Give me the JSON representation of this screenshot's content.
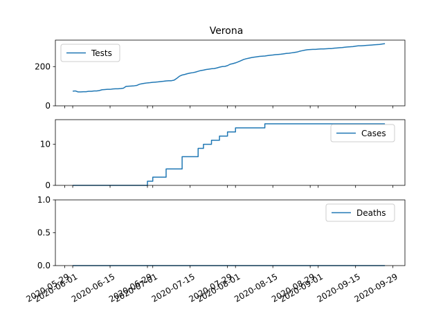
{
  "figure": {
    "title": "Verona",
    "line_color": "#1f77b4"
  },
  "chart_data": [
    {
      "type": "line",
      "series": [
        {
          "name": "Tests",
          "x": [
            "2020-06-01",
            "2020-06-02",
            "2020-06-03",
            "2020-06-04",
            "2020-06-05",
            "2020-06-06",
            "2020-06-07",
            "2020-06-08",
            "2020-06-09",
            "2020-06-10",
            "2020-06-11",
            "2020-06-12",
            "2020-06-13",
            "2020-06-14",
            "2020-06-15",
            "2020-06-16",
            "2020-06-17",
            "2020-06-18",
            "2020-06-19",
            "2020-06-20",
            "2020-06-21",
            "2020-06-22",
            "2020-06-23",
            "2020-06-24",
            "2020-06-25",
            "2020-06-26",
            "2020-06-27",
            "2020-06-28",
            "2020-06-29",
            "2020-06-30",
            "2020-07-01",
            "2020-07-02",
            "2020-07-03",
            "2020-07-04",
            "2020-07-05",
            "2020-07-06",
            "2020-07-07",
            "2020-07-08",
            "2020-07-09",
            "2020-07-10",
            "2020-07-11",
            "2020-07-12",
            "2020-07-13",
            "2020-07-14",
            "2020-07-15",
            "2020-07-16",
            "2020-07-17",
            "2020-07-18",
            "2020-07-19",
            "2020-07-20",
            "2020-07-21",
            "2020-07-22",
            "2020-07-23",
            "2020-07-24",
            "2020-07-25",
            "2020-07-26",
            "2020-07-27",
            "2020-07-28",
            "2020-07-29",
            "2020-07-30",
            "2020-07-31",
            "2020-08-01",
            "2020-08-02",
            "2020-08-03",
            "2020-08-04",
            "2020-08-05",
            "2020-08-06",
            "2020-08-07",
            "2020-08-08",
            "2020-08-09",
            "2020-08-10",
            "2020-08-11",
            "2020-08-12",
            "2020-08-13",
            "2020-08-14",
            "2020-08-15",
            "2020-08-16",
            "2020-08-17",
            "2020-08-18",
            "2020-08-19",
            "2020-08-20",
            "2020-08-21",
            "2020-08-22",
            "2020-08-23",
            "2020-08-24",
            "2020-08-25",
            "2020-08-26",
            "2020-08-27",
            "2020-08-28",
            "2020-08-29",
            "2020-08-30",
            "2020-08-31",
            "2020-09-01",
            "2020-09-02",
            "2020-09-03",
            "2020-09-04",
            "2020-09-05",
            "2020-09-06",
            "2020-09-07",
            "2020-09-08",
            "2020-09-09",
            "2020-09-10",
            "2020-09-11",
            "2020-09-12",
            "2020-09-13",
            "2020-09-14",
            "2020-09-15",
            "2020-09-16",
            "2020-09-17",
            "2020-09-18",
            "2020-09-19",
            "2020-09-20",
            "2020-09-21",
            "2020-09-22",
            "2020-09-23",
            "2020-09-24",
            "2020-09-25",
            "2020-09-26"
          ],
          "values": [
            75,
            76,
            71,
            71,
            72,
            72,
            74,
            74,
            76,
            76,
            78,
            82,
            83,
            84,
            84,
            86,
            87,
            87,
            88,
            90,
            99,
            100,
            101,
            102,
            104,
            110,
            113,
            115,
            117,
            118,
            120,
            121,
            122,
            124,
            125,
            127,
            128,
            128,
            131,
            140,
            151,
            157,
            160,
            164,
            167,
            169,
            172,
            176,
            180,
            182,
            185,
            187,
            189,
            190,
            193,
            197,
            200,
            201,
            205,
            212,
            215,
            219,
            224,
            230,
            236,
            240,
            243,
            246,
            248,
            250,
            252,
            253,
            254,
            256,
            258,
            259,
            261,
            262,
            263,
            265,
            267,
            268,
            270,
            272,
            274,
            278,
            281,
            284,
            286,
            287,
            288,
            288,
            289,
            290,
            290,
            291,
            292,
            292,
            294,
            295,
            296,
            297,
            299,
            300,
            301,
            302,
            304,
            306,
            306,
            307,
            308,
            309,
            310,
            311,
            312,
            313,
            315,
            317
          ]
        }
      ],
      "ylim": [
        0,
        335
      ],
      "yticks": [
        0,
        200
      ],
      "legend": "top-left"
    },
    {
      "type": "line",
      "series": [
        {
          "name": "Cases",
          "steps": [
            [
              "2020-06-01",
              0
            ],
            [
              "2020-06-29",
              1
            ],
            [
              "2020-07-01",
              2
            ],
            [
              "2020-07-06",
              4
            ],
            [
              "2020-07-12",
              7
            ],
            [
              "2020-07-18",
              9
            ],
            [
              "2020-07-20",
              10
            ],
            [
              "2020-07-23",
              11
            ],
            [
              "2020-07-26",
              12
            ],
            [
              "2020-07-29",
              13
            ],
            [
              "2020-08-01",
              14
            ],
            [
              "2020-08-12",
              15
            ],
            [
              "2020-09-26",
              15
            ]
          ]
        }
      ],
      "ylim": [
        0,
        16
      ],
      "yticks": [
        0,
        10
      ],
      "legend": "top-right"
    },
    {
      "type": "line",
      "series": [
        {
          "name": "Deaths",
          "steps": [
            [
              "2020-06-01",
              0
            ],
            [
              "2020-09-26",
              0
            ]
          ]
        }
      ],
      "ylim": [
        0,
        1
      ],
      "yticks": [
        0.0,
        0.5,
        1.0
      ],
      "legend": "top-right"
    }
  ],
  "x_axis": {
    "tick_labels": [
      "2020-06-01",
      "2020-06-15",
      "2020-07-01",
      "2020-07-15",
      "2020-08-01",
      "2020-08-15",
      "2020-09-01",
      "2020-09-15",
      "2020-09-29"
    ],
    "overlap_labels": [
      "2020-05-29",
      "2020-06-29",
      "2020-07-29",
      "2020-08-29"
    ]
  }
}
